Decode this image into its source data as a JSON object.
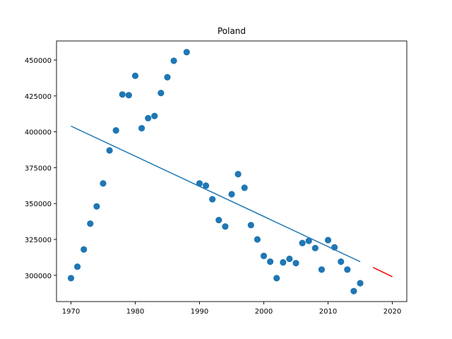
{
  "chart_data": {
    "type": "scatter",
    "title": "Poland",
    "xlabel": "",
    "ylabel": "",
    "xlim": [
      1967.75,
      2022.25
    ],
    "ylim": [
      281700,
      463300
    ],
    "x_ticks": [
      1970,
      1980,
      1990,
      2000,
      2010,
      2020
    ],
    "y_ticks": [
      300000,
      325000,
      350000,
      375000,
      400000,
      425000,
      450000
    ],
    "y_tick_labels": [
      "300000",
      "325000",
      "350000",
      "375000",
      "400000",
      "425000",
      "450000"
    ],
    "grid": false,
    "colors": {
      "points": "#1f77b4",
      "trend": "#1f77b4",
      "forecast": "#ff0000"
    },
    "points": [
      {
        "x": 1970,
        "y": 298000
      },
      {
        "x": 1971,
        "y": 306000
      },
      {
        "x": 1972,
        "y": 318000
      },
      {
        "x": 1973,
        "y": 336000
      },
      {
        "x": 1974,
        "y": 348000
      },
      {
        "x": 1975,
        "y": 364000
      },
      {
        "x": 1976,
        "y": 387000
      },
      {
        "x": 1977,
        "y": 401000
      },
      {
        "x": 1978,
        "y": 426000
      },
      {
        "x": 1979,
        "y": 425500
      },
      {
        "x": 1980,
        "y": 439000
      },
      {
        "x": 1981,
        "y": 402500
      },
      {
        "x": 1982,
        "y": 409500
      },
      {
        "x": 1983,
        "y": 411000
      },
      {
        "x": 1984,
        "y": 427000
      },
      {
        "x": 1985,
        "y": 438000
      },
      {
        "x": 1986,
        "y": 449500
      },
      {
        "x": 1988,
        "y": 455500
      },
      {
        "x": 1990,
        "y": 364000
      },
      {
        "x": 1991,
        "y": 362500
      },
      {
        "x": 1992,
        "y": 353000
      },
      {
        "x": 1993,
        "y": 338500
      },
      {
        "x": 1994,
        "y": 334000
      },
      {
        "x": 1995,
        "y": 356500
      },
      {
        "x": 1996,
        "y": 370500
      },
      {
        "x": 1997,
        "y": 361000
      },
      {
        "x": 1998,
        "y": 335000
      },
      {
        "x": 1999,
        "y": 325000
      },
      {
        "x": 2000,
        "y": 313500
      },
      {
        "x": 2001,
        "y": 309500
      },
      {
        "x": 2002,
        "y": 298000
      },
      {
        "x": 2003,
        "y": 309000
      },
      {
        "x": 2004,
        "y": 311500
      },
      {
        "x": 2005,
        "y": 308500
      },
      {
        "x": 2006,
        "y": 322500
      },
      {
        "x": 2007,
        "y": 324000
      },
      {
        "x": 2008,
        "y": 319000
      },
      {
        "x": 2009,
        "y": 304000
      },
      {
        "x": 2010,
        "y": 324500
      },
      {
        "x": 2011,
        "y": 319500
      },
      {
        "x": 2012,
        "y": 309500
      },
      {
        "x": 2013,
        "y": 304000
      },
      {
        "x": 2014,
        "y": 289000
      },
      {
        "x": 2015,
        "y": 294500
      }
    ],
    "trend_line": [
      {
        "x": 1970,
        "y": 404000
      },
      {
        "x": 2015,
        "y": 309500
      }
    ],
    "forecast_line": [
      {
        "x": 2017,
        "y": 305500
      },
      {
        "x": 2020,
        "y": 299000
      }
    ]
  }
}
